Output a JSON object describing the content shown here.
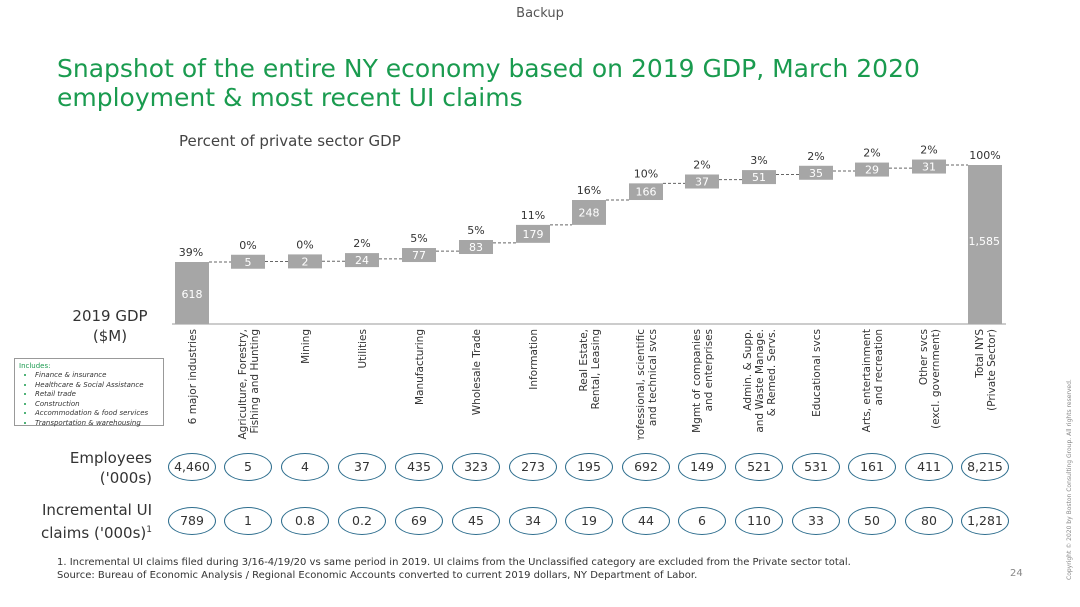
{
  "header": {
    "backup_label": "Backup",
    "title": "Snapshot of the entire NY economy based on 2019 GDP, March 2020 employment & most recent UI claims",
    "subtitle": "Percent of private sector GDP",
    "gdp_label_line1": "2019 GDP",
    "gdp_label_line2": "($M)"
  },
  "includes_box": {
    "title": "Includes:",
    "items": [
      "Finance & insurance",
      "Healthcare & Social Assistance",
      "Retail trade",
      "Construction",
      "Accommodation & food services",
      "Transportation & warehousing"
    ]
  },
  "chart_data": {
    "type": "bar",
    "subtype": "waterfall",
    "title": "Percent of private sector GDP",
    "ylabel": "2019 GDP ($M)",
    "categories": [
      [
        "6 major industries"
      ],
      [
        "Agriculture, Forestry,",
        "Fishing and Hunting"
      ],
      [
        "Mining"
      ],
      [
        "Utilities"
      ],
      [
        "Manufacturing"
      ],
      [
        "Wholesale Trade"
      ],
      [
        "Information"
      ],
      [
        "Real Estate,",
        "Rental, Leasing"
      ],
      [
        "Professional, scientific",
        "and technical svcs"
      ],
      [
        "Mgmt of companies",
        "and enterprises"
      ],
      [
        "Admin. & Supp.",
        "and Waste Manage.",
        "& Remed. Servs."
      ],
      [
        "Educational svcs"
      ],
      [
        "Arts, entertainment",
        "and recreation"
      ],
      [
        "Other svcs",
        "(excl. government)"
      ],
      [
        "Total NYS",
        "(Private Sector)"
      ]
    ],
    "values": [
      618,
      5,
      2,
      24,
      77,
      83,
      179,
      248,
      166,
      37,
      51,
      35,
      29,
      31,
      1585
    ],
    "value_labels": [
      "618",
      "5",
      "2",
      "24",
      "77",
      "83",
      "179",
      "248",
      "166",
      "37",
      "51",
      "35",
      "29",
      "31",
      "1,585"
    ],
    "percent_labels": [
      "39%",
      "0%",
      "0%",
      "2%",
      "5%",
      "5%",
      "11%",
      "16%",
      "10%",
      "2%",
      "3%",
      "2%",
      "2%",
      "2%",
      "100%"
    ],
    "total_index": 14,
    "ylim": [
      0,
      1585
    ],
    "bar_color": "#a6a6a6",
    "grid": false
  },
  "employees": {
    "label_line1": "Employees",
    "label_line2": "('000s)",
    "values": [
      "4,460",
      "5",
      "4",
      "37",
      "435",
      "323",
      "273",
      "195",
      "692",
      "149",
      "521",
      "531",
      "161",
      "411",
      "8,215"
    ]
  },
  "ui_claims": {
    "label_line1": "Incremental UI",
    "label_line2": "claims ('000s)",
    "label_sup": "1",
    "values": [
      "789",
      "1",
      "0.8",
      "0.2",
      "69",
      "45",
      "34",
      "19",
      "44",
      "6",
      "110",
      "33",
      "50",
      "80",
      "1,281"
    ]
  },
  "footnote": {
    "line1": "1. Incremental UI claims filed during 3/16-4/19/20 vs same period in 2019. UI claims from the Unclassified category are excluded from the Private sector total.",
    "line2": "Source: Bureau of Economic Analysis / Regional Economic Accounts converted to current 2019 dollars, NY Department of Labor."
  },
  "page_number": "24",
  "copyright": "Copyright © 2020 by Boston Consulting Group. All rights reserved.",
  "colors": {
    "title_green": "#1a9b4f",
    "bar_gray": "#a6a6a6",
    "pill_border": "#2e6e8e"
  }
}
